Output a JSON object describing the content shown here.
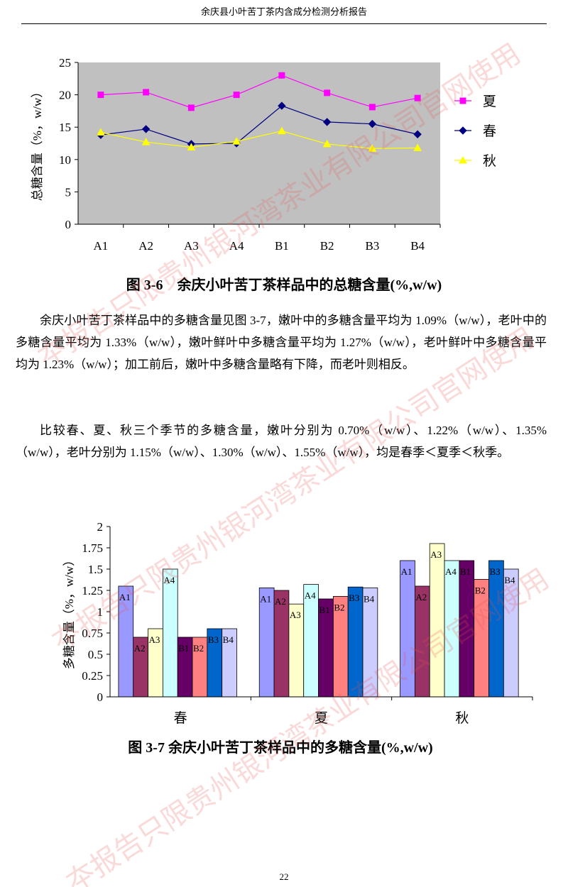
{
  "header": "余庆县小叶苦丁茶内含成分检测分析报告",
  "watermark": "夲报告只限贵州银河湾茶业有限公司官网使用",
  "chart_data": [
    {
      "type": "line",
      "title": "图 3-6　余庆小叶苦丁茶样品中的总糖含量(%,w/w)",
      "y_label": "总糖含量（%，w/w）",
      "categories": [
        "A1",
        "A2",
        "A3",
        "A4",
        "B1",
        "B2",
        "B3",
        "B4"
      ],
      "series": [
        {
          "name": "夏",
          "color": "#ff00ff",
          "marker": "square",
          "values": [
            20,
            20.4,
            18,
            20,
            23,
            20.3,
            18.1,
            19.5
          ]
        },
        {
          "name": "春",
          "color": "#000080",
          "marker": "diamond",
          "values": [
            13.8,
            14.7,
            12.4,
            12.5,
            18.3,
            15.8,
            15.5,
            13.9
          ]
        },
        {
          "name": "秋",
          "color": "#ffff00",
          "marker": "triangle",
          "values": [
            14.2,
            12.7,
            11.9,
            12.8,
            14.4,
            12.4,
            11.7,
            11.8
          ]
        }
      ],
      "ylim": [
        0,
        25
      ],
      "yticks": [
        0,
        5,
        10,
        15,
        20,
        25
      ],
      "plot_background": "#c0c0c0",
      "legend": "right"
    },
    {
      "type": "bar",
      "title": "图 3-7  余庆小叶苦丁茶样品中的多糖含量(%,w/w)",
      "y_label": "多糖含量（%，w/w）",
      "categories": [
        "春",
        "夏",
        "秋"
      ],
      "series": [
        {
          "name": "A1",
          "color": "#9999ff",
          "values": [
            1.3,
            1.28,
            1.6
          ]
        },
        {
          "name": "A2",
          "color": "#993366",
          "values": [
            0.7,
            1.25,
            1.3
          ]
        },
        {
          "name": "A3",
          "color": "#ffffcc",
          "values": [
            0.8,
            1.09,
            1.8
          ]
        },
        {
          "name": "A4",
          "color": "#ccffff",
          "values": [
            1.5,
            1.32,
            1.6
          ]
        },
        {
          "name": "B1",
          "color": "#660066",
          "values": [
            0.7,
            1.15,
            1.6
          ]
        },
        {
          "name": "B2",
          "color": "#ff8080",
          "values": [
            0.7,
            1.18,
            1.38
          ]
        },
        {
          "name": "B3",
          "color": "#0066cc",
          "values": [
            0.8,
            1.29,
            1.6
          ]
        },
        {
          "name": "B4",
          "color": "#ccccff",
          "values": [
            0.8,
            1.28,
            1.5
          ]
        }
      ],
      "ylim": [
        0,
        2
      ],
      "yticks": [
        0,
        0.25,
        0.5,
        0.75,
        1,
        1.25,
        1.5,
        1.75,
        2
      ]
    }
  ],
  "paragraphs": [
    "余庆小叶苦丁茶样品中的多糖含量见图 3-7，嫩叶中的多糖含量平均为 1.09%（w/w），老叶中的多糖含量平均为 1.33%（w/w），嫩叶鲜叶中多糖含量平均为 1.27%（w/w），老叶鲜叶中多糖含量平均为 1.23%（w/w）；加工前后，嫩叶中多糖含量略有下降，而老叶则相反。",
    "比较春、夏、秋三个季节的多糖含量，嫩叶分别为 0.70%（w/w）、1.22%（w/w）、1.35%（w/w），老叶分别为 1.15%（w/w）、1.30%（w/w）、1.55%（w/w），均是春季＜夏季＜秋季。"
  ],
  "page_number": "22"
}
